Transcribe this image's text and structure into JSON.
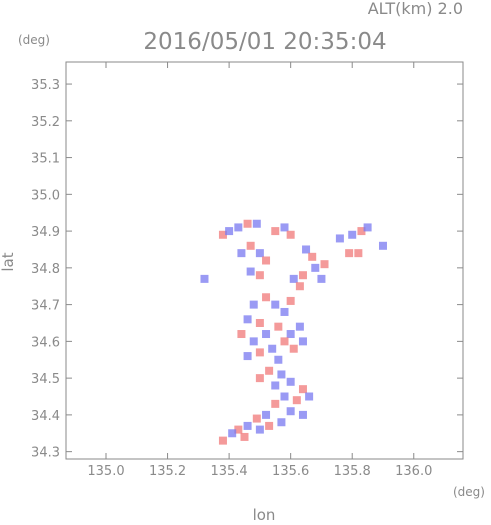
{
  "header": {
    "altitude_label": "ALT(km) 2.0",
    "timestamp": "2016/05/01 20:35:04"
  },
  "chart_data": {
    "type": "heatmap",
    "title": "2016/05/01 20:35:04",
    "subtitle": "ALT(km) 2.0",
    "xlabel": "lon",
    "ylabel": "lat",
    "x_unit": "(deg)",
    "y_unit": "(deg)",
    "xlim": [
      134.87,
      136.16
    ],
    "ylim": [
      34.28,
      35.36
    ],
    "x_ticks": [
      135.0,
      135.2,
      135.4,
      135.6,
      135.8,
      136.0
    ],
    "x_tick_labels": [
      "135.0",
      "135.2",
      "135.4",
      "135.6",
      "135.8",
      "136.0"
    ],
    "y_ticks": [
      34.3,
      34.4,
      34.5,
      34.6,
      34.7,
      34.8,
      34.9,
      35.0,
      35.1,
      35.2,
      35.3
    ],
    "y_tick_labels": [
      "34.3",
      "34.4",
      "34.5",
      "34.6",
      "34.7",
      "34.8",
      "34.9",
      "35.0",
      "35.1",
      "35.2",
      "35.3"
    ],
    "grid": false,
    "colors": {
      "positive": "#f07878",
      "negative": "#7878f0",
      "axis": "#8a8a8a"
    },
    "points": [
      {
        "lon": 135.38,
        "lat": 34.89,
        "sign": 1
      },
      {
        "lon": 135.4,
        "lat": 34.9,
        "sign": -1
      },
      {
        "lon": 135.43,
        "lat": 34.91,
        "sign": -1
      },
      {
        "lon": 135.46,
        "lat": 34.92,
        "sign": 1
      },
      {
        "lon": 135.49,
        "lat": 34.92,
        "sign": -1
      },
      {
        "lon": 135.55,
        "lat": 34.9,
        "sign": 1
      },
      {
        "lon": 135.58,
        "lat": 34.91,
        "sign": -1
      },
      {
        "lon": 135.6,
        "lat": 34.89,
        "sign": 1
      },
      {
        "lon": 135.44,
        "lat": 34.84,
        "sign": -1
      },
      {
        "lon": 135.47,
        "lat": 34.86,
        "sign": 1
      },
      {
        "lon": 135.5,
        "lat": 34.84,
        "sign": -1
      },
      {
        "lon": 135.52,
        "lat": 34.82,
        "sign": 1
      },
      {
        "lon": 135.47,
        "lat": 34.79,
        "sign": -1
      },
      {
        "lon": 135.5,
        "lat": 34.78,
        "sign": 1
      },
      {
        "lon": 135.65,
        "lat": 34.85,
        "sign": -1
      },
      {
        "lon": 135.67,
        "lat": 34.83,
        "sign": 1
      },
      {
        "lon": 135.68,
        "lat": 34.8,
        "sign": -1
      },
      {
        "lon": 135.64,
        "lat": 34.78,
        "sign": 1
      },
      {
        "lon": 135.61,
        "lat": 34.77,
        "sign": -1
      },
      {
        "lon": 135.63,
        "lat": 34.75,
        "sign": 1
      },
      {
        "lon": 135.7,
        "lat": 34.77,
        "sign": -1
      },
      {
        "lon": 135.71,
        "lat": 34.81,
        "sign": 1
      },
      {
        "lon": 135.76,
        "lat": 34.88,
        "sign": -1
      },
      {
        "lon": 135.8,
        "lat": 34.89,
        "sign": -1
      },
      {
        "lon": 135.83,
        "lat": 34.9,
        "sign": 1
      },
      {
        "lon": 135.85,
        "lat": 34.91,
        "sign": -1
      },
      {
        "lon": 135.79,
        "lat": 34.84,
        "sign": 1
      },
      {
        "lon": 135.82,
        "lat": 34.84,
        "sign": 1
      },
      {
        "lon": 135.9,
        "lat": 34.86,
        "sign": -1
      },
      {
        "lon": 135.32,
        "lat": 34.77,
        "sign": -1
      },
      {
        "lon": 135.48,
        "lat": 34.7,
        "sign": -1
      },
      {
        "lon": 135.52,
        "lat": 34.72,
        "sign": 1
      },
      {
        "lon": 135.55,
        "lat": 34.7,
        "sign": -1
      },
      {
        "lon": 135.58,
        "lat": 34.68,
        "sign": -1
      },
      {
        "lon": 135.6,
        "lat": 34.71,
        "sign": 1
      },
      {
        "lon": 135.46,
        "lat": 34.66,
        "sign": -1
      },
      {
        "lon": 135.5,
        "lat": 34.65,
        "sign": 1
      },
      {
        "lon": 135.44,
        "lat": 34.62,
        "sign": 1
      },
      {
        "lon": 135.48,
        "lat": 34.6,
        "sign": -1
      },
      {
        "lon": 135.52,
        "lat": 34.62,
        "sign": -1
      },
      {
        "lon": 135.56,
        "lat": 34.64,
        "sign": 1
      },
      {
        "lon": 135.6,
        "lat": 34.62,
        "sign": -1
      },
      {
        "lon": 135.63,
        "lat": 34.64,
        "sign": -1
      },
      {
        "lon": 135.58,
        "lat": 34.6,
        "sign": 1
      },
      {
        "lon": 135.54,
        "lat": 34.58,
        "sign": -1
      },
      {
        "lon": 135.5,
        "lat": 34.57,
        "sign": 1
      },
      {
        "lon": 135.46,
        "lat": 34.56,
        "sign": -1
      },
      {
        "lon": 135.61,
        "lat": 34.58,
        "sign": 1
      },
      {
        "lon": 135.64,
        "lat": 34.6,
        "sign": -1
      },
      {
        "lon": 135.56,
        "lat": 34.55,
        "sign": -1
      },
      {
        "lon": 135.53,
        "lat": 34.52,
        "sign": 1
      },
      {
        "lon": 135.57,
        "lat": 34.51,
        "sign": -1
      },
      {
        "lon": 135.5,
        "lat": 34.5,
        "sign": 1
      },
      {
        "lon": 135.55,
        "lat": 34.48,
        "sign": -1
      },
      {
        "lon": 135.6,
        "lat": 34.49,
        "sign": -1
      },
      {
        "lon": 135.64,
        "lat": 34.47,
        "sign": 1
      },
      {
        "lon": 135.66,
        "lat": 34.45,
        "sign": -1
      },
      {
        "lon": 135.62,
        "lat": 34.44,
        "sign": 1
      },
      {
        "lon": 135.58,
        "lat": 34.45,
        "sign": -1
      },
      {
        "lon": 135.55,
        "lat": 34.43,
        "sign": 1
      },
      {
        "lon": 135.6,
        "lat": 34.41,
        "sign": -1
      },
      {
        "lon": 135.64,
        "lat": 34.4,
        "sign": -1
      },
      {
        "lon": 135.52,
        "lat": 34.4,
        "sign": -1
      },
      {
        "lon": 135.49,
        "lat": 34.39,
        "sign": 1
      },
      {
        "lon": 135.46,
        "lat": 34.37,
        "sign": -1
      },
      {
        "lon": 135.43,
        "lat": 34.36,
        "sign": 1
      },
      {
        "lon": 135.41,
        "lat": 34.35,
        "sign": -1
      },
      {
        "lon": 135.38,
        "lat": 34.33,
        "sign": 1
      },
      {
        "lon": 135.45,
        "lat": 34.34,
        "sign": 1
      },
      {
        "lon": 135.5,
        "lat": 34.36,
        "sign": -1
      },
      {
        "lon": 135.53,
        "lat": 34.37,
        "sign": 1
      },
      {
        "lon": 135.57,
        "lat": 34.38,
        "sign": -1
      }
    ]
  }
}
